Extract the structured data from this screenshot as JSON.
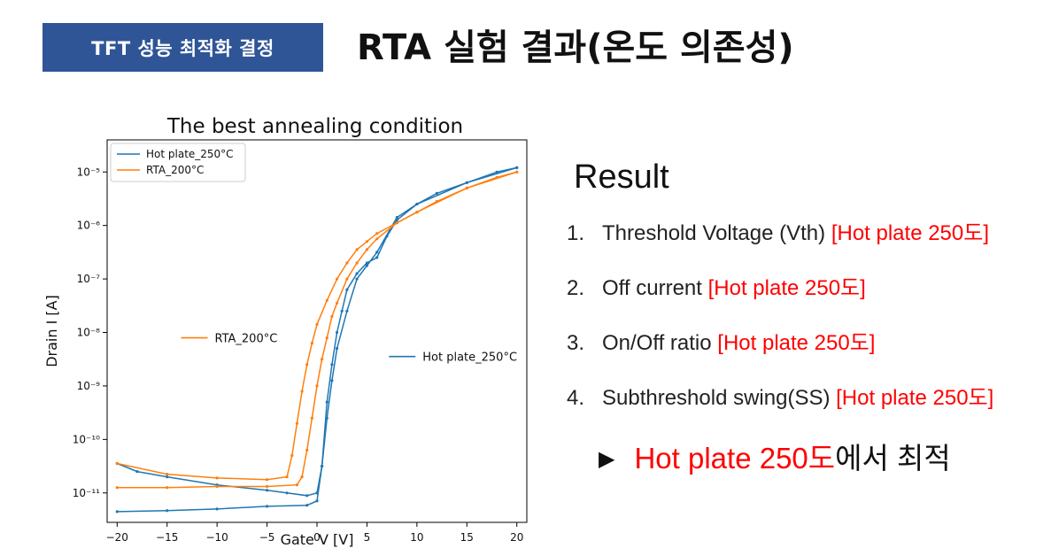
{
  "header": {
    "tag": "TFT 성능 최적화 결정",
    "title": "RTA 실험 결과(온도 의존성)"
  },
  "result": {
    "heading": "Result",
    "items": [
      {
        "num": "1.",
        "text": "Threshold Voltage (Vth)",
        "highlight": "[Hot plate 250도]"
      },
      {
        "num": "2.",
        "text": "Off current",
        "highlight": "[Hot plate 250도]"
      },
      {
        "num": "3.",
        "text": "On/Off ratio",
        "highlight": "[Hot plate 250도]"
      },
      {
        "num": "4.",
        "text": "Subthreshold swing(SS)",
        "highlight": "[Hot plate 250도]"
      }
    ],
    "conclusion": {
      "arrow": "▶",
      "highlight": "Hot plate 250도",
      "text": "에서 최적"
    }
  },
  "colors": {
    "tag_bg": "#2f5597",
    "highlight": "#ff0000",
    "hot_plate": "#1f77b4",
    "rta": "#ff7f0e"
  },
  "chart_data": {
    "type": "line",
    "title": "The best annealing condition",
    "xlabel": "Gate V [V]",
    "ylabel": "Drain I [A]",
    "xlim": [
      -21,
      21
    ],
    "ylim_log10": [
      -11.55,
      -4.4
    ],
    "x_ticks": [
      -20,
      -15,
      -10,
      -5,
      0,
      5,
      10,
      15,
      20
    ],
    "x_tick_labels": [
      "−20",
      "−15",
      "−10",
      "−5",
      "0",
      "5",
      "10",
      "15",
      "20"
    ],
    "y_ticks_log10": [
      -11,
      -10,
      -9,
      -8,
      -7,
      -6,
      -5
    ],
    "y_tick_labels": [
      "10⁻¹¹",
      "10⁻¹⁰",
      "10⁻⁹",
      "10⁻⁸",
      "10⁻⁷",
      "10⁻⁶",
      "10⁻⁵"
    ],
    "legend": {
      "position": "top-left",
      "entries": [
        "Hot plate_250°C",
        "RTA_200°C"
      ]
    },
    "annotations": [
      {
        "text": "RTA_200°C",
        "series": "RTA_200°C",
        "x": -13.6,
        "log10y": -8.1
      },
      {
        "text": "Hot plate_250°C",
        "series": "Hot plate_250°C",
        "x": 7.2,
        "log10y": -8.45
      }
    ],
    "series": [
      {
        "name": "Hot plate_250°C",
        "color": "#1f77b4",
        "branches": [
          {
            "x": [
              -20,
              -15,
              -10,
              -5,
              -1,
              0,
              0.5,
              1,
              1.5,
              2,
              2.5,
              3,
              4,
              5,
              6,
              7,
              8,
              10,
              12,
              15,
              18,
              20
            ],
            "log10y": [
              -11.35,
              -11.33,
              -11.3,
              -11.25,
              -11.23,
              -11.15,
              -10.5,
              -9.3,
              -8.6,
              -8.0,
              -7.6,
              -7.2,
              -6.9,
              -6.7,
              -6.6,
              -6.2,
              -5.9,
              -5.6,
              -5.4,
              -5.2,
              -5.0,
              -4.92
            ]
          },
          {
            "x": [
              20,
              15,
              10,
              8,
              6,
              5,
              4,
              3,
              2,
              1.5,
              1,
              0.5,
              0,
              -1,
              -3,
              -5,
              -10,
              -15,
              -18,
              -20
            ],
            "log10y": [
              -4.92,
              -5.2,
              -5.6,
              -5.85,
              -6.5,
              -6.75,
              -7.0,
              -7.6,
              -8.3,
              -8.9,
              -9.6,
              -10.5,
              -11.0,
              -11.05,
              -11.0,
              -10.95,
              -10.85,
              -10.7,
              -10.6,
              -10.45
            ]
          }
        ]
      },
      {
        "name": "RTA_200°C",
        "color": "#ff7f0e",
        "branches": [
          {
            "x": [
              -20,
              -15,
              -10,
              -5,
              -3,
              -2.5,
              -2,
              -1.5,
              -1,
              -0.5,
              0,
              1,
              2,
              3,
              4,
              5,
              6,
              8,
              10,
              12,
              15,
              18,
              20
            ],
            "log10y": [
              -10.45,
              -10.65,
              -10.72,
              -10.75,
              -10.7,
              -10.3,
              -9.7,
              -9.1,
              -8.6,
              -8.2,
              -7.85,
              -7.4,
              -7.0,
              -6.7,
              -6.45,
              -6.3,
              -6.15,
              -5.95,
              -5.75,
              -5.55,
              -5.3,
              -5.1,
              -5.0
            ]
          },
          {
            "x": [
              20,
              15,
              10,
              8,
              6,
              5,
              4,
              3,
              2,
              1.5,
              1,
              0.5,
              0,
              -0.5,
              -1,
              -1.5,
              -2,
              -5,
              -10,
              -15,
              -20
            ],
            "log10y": [
              -5.0,
              -5.3,
              -5.75,
              -5.95,
              -6.25,
              -6.45,
              -6.7,
              -7.0,
              -7.45,
              -7.7,
              -8.1,
              -8.5,
              -9.0,
              -9.6,
              -10.2,
              -10.7,
              -10.85,
              -10.88,
              -10.88,
              -10.9,
              -10.9
            ]
          }
        ]
      }
    ]
  }
}
